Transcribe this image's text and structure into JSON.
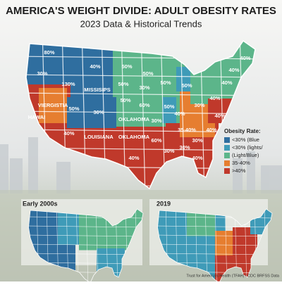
{
  "title": "AMERICA'S WEIGHT DIVIDE: ADULT OBESITY RATES",
  "subtitle": "2023 Data & Historical Trends",
  "main_map": {
    "labels": [
      "80%",
      "40%",
      "30%",
      "130%",
      "MISSISIPS",
      "VIERGISTIA",
      "HAWAI",
      "50%",
      "30%",
      "40%",
      "LOUISIANA",
      "OKLAHOMA",
      "OKLAHOMA",
      "40%",
      "50%",
      "50%",
      "50%",
      "30%",
      "50%",
      "50%",
      "60%",
      "50%",
      "30%",
      "50%",
      "40%",
      "30%",
      "30%",
      "60%",
      "30%",
      "35-40%",
      "40%",
      "30%",
      "40%",
      "40%",
      "40%",
      "40%",
      "40%",
      "40%"
    ]
  },
  "legend": {
    "title": "Obesity Rate:",
    "items": [
      {
        "label": "<30% (Blue",
        "color": "#2f6e9f"
      },
      {
        "label": "<30% (lights/",
        "color": "#3f9bb8"
      },
      {
        "label": "(Light/Blue)",
        "color": "#5cb58a"
      },
      {
        "label": "35-40%",
        "color": "#e67e30"
      },
      {
        "label": ">40%",
        "color": "#c0392b"
      }
    ]
  },
  "insets": [
    {
      "title": "Early 2000s"
    },
    {
      "title": "2019"
    }
  ],
  "source": "Trust for America's Health (TFAH) / CDC BRFSS Data"
}
